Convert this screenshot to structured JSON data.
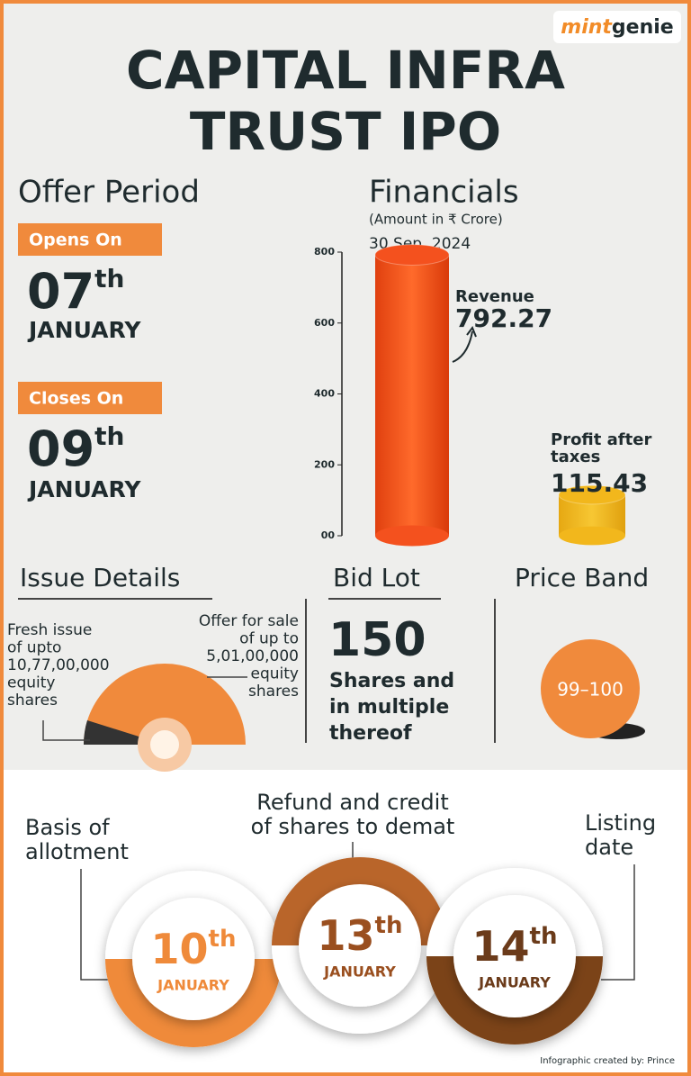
{
  "logo": [
    "mint",
    "genie"
  ],
  "title": [
    "CAPITAL INFRA",
    "TRUST IPO"
  ],
  "offer_period": {
    "heading": "Offer Period",
    "opens": {
      "label": "Opens On",
      "day": "07",
      "suffix": "th",
      "month": "JANUARY"
    },
    "closes": {
      "label": "Closes On",
      "day": "09",
      "suffix": "th",
      "month": "JANUARY"
    }
  },
  "chart_data": {
    "type": "bar",
    "title": "Financials",
    "subtitle": "(Amount in ₹ Crore)",
    "period": "30 Sep, 2024",
    "categories": [
      "Revenue",
      "Profit after taxes"
    ],
    "values": [
      792.27,
      115.43
    ],
    "colors": [
      "#f4511e",
      "#f2b71c"
    ],
    "ylim": [
      0,
      800
    ],
    "yticks": [
      {
        "value": 0,
        "label": "00"
      },
      200,
      400,
      600,
      800
    ]
  },
  "issue_details": {
    "heading": "Issue Details",
    "fresh_issue": [
      "Fresh issue",
      "of upto",
      "10,77,00,000",
      "equity",
      "shares"
    ],
    "offer_for_sale": [
      "Offer for sale",
      "of up to",
      "5,01,00,000",
      "equity",
      "shares"
    ]
  },
  "bid_lot": {
    "heading": "Bid Lot",
    "value": "150",
    "text": [
      "Shares and",
      "in multiple",
      "thereof"
    ]
  },
  "price_band": {
    "heading": "Price Band",
    "value": "99–100"
  },
  "timeline": [
    {
      "label": [
        "Basis of",
        "allotment"
      ],
      "day": "10",
      "suffix": "th",
      "month": "JANUARY"
    },
    {
      "label": [
        "Refund and credit",
        "of shares to demat"
      ],
      "day": "13",
      "suffix": "th",
      "month": "JANUARY"
    },
    {
      "label": [
        "Listing",
        "date"
      ],
      "day": "14",
      "suffix": "th",
      "month": "JANUARY"
    }
  ],
  "credit": "Infographic created by: Prince"
}
